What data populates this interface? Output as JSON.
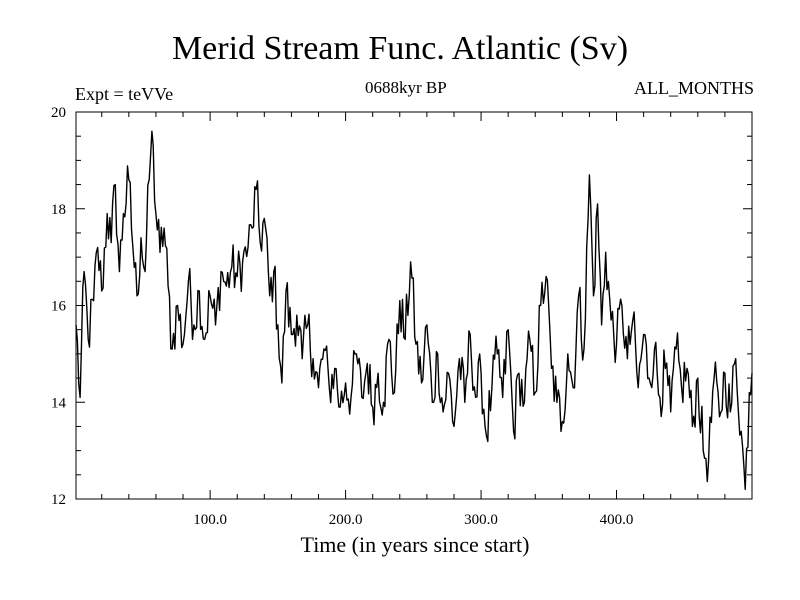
{
  "chart_data": {
    "type": "line",
    "title": "Merid Stream Func. Atlantic (Sv)",
    "subtitle_left": "Expt = teVVe",
    "subtitle_center": "0688kyr BP",
    "subtitle_right": "ALL_MONTHS",
    "xlabel": "Time (in years since start)",
    "ylabel": "",
    "xlim": [
      1,
      500
    ],
    "ylim": [
      12,
      20
    ],
    "x_ticks": [
      100,
      200,
      300,
      400
    ],
    "x_tick_labels": [
      "100.0",
      "200.0",
      "300.0",
      "400.0"
    ],
    "y_ticks": [
      12,
      14,
      16,
      18,
      20
    ],
    "y_tick_labels": [
      "12",
      "14",
      "16",
      "18",
      "20"
    ],
    "grid": false,
    "legend": "none",
    "line_color": "#000000",
    "anchors": [
      [
        1,
        15.6
      ],
      [
        4,
        14.1
      ],
      [
        7,
        16.7
      ],
      [
        10,
        15.3
      ],
      [
        14,
        16.1
      ],
      [
        17,
        17.2
      ],
      [
        20,
        16.3
      ],
      [
        24,
        17.9
      ],
      [
        27,
        17.3
      ],
      [
        30,
        18.5
      ],
      [
        33,
        16.7
      ],
      [
        36,
        17.9
      ],
      [
        40,
        18.6
      ],
      [
        43,
        17.2
      ],
      [
        46,
        16.2
      ],
      [
        49,
        17.4
      ],
      [
        52,
        16.7
      ],
      [
        55,
        18.6
      ],
      [
        57,
        19.6
      ],
      [
        60,
        17.9
      ],
      [
        63,
        17.1
      ],
      [
        66,
        17.6
      ],
      [
        69,
        16.4
      ],
      [
        72,
        15.1
      ],
      [
        76,
        16.0
      ],
      [
        80,
        15.2
      ],
      [
        84,
        16.5
      ],
      [
        88,
        15.6
      ],
      [
        92,
        16.3
      ],
      [
        96,
        15.3
      ],
      [
        100,
        16.2
      ],
      [
        104,
        15.6
      ],
      [
        108,
        16.7
      ],
      [
        112,
        16.4
      ],
      [
        116,
        16.8
      ],
      [
        120,
        16.6
      ],
      [
        124,
        16.9
      ],
      [
        128,
        17.2
      ],
      [
        131,
        17.6
      ],
      [
        134,
        18.4
      ],
      [
        137,
        17.3
      ],
      [
        140,
        17.8
      ],
      [
        144,
        16.2
      ],
      [
        147,
        16.7
      ],
      [
        150,
        15.6
      ],
      [
        153,
        14.4
      ],
      [
        156,
        16.3
      ],
      [
        160,
        15.4
      ],
      [
        164,
        15.8
      ],
      [
        168,
        14.9
      ],
      [
        172,
        15.6
      ],
      [
        176,
        14.9
      ],
      [
        180,
        14.3
      ],
      [
        184,
        15.1
      ],
      [
        188,
        14.3
      ],
      [
        192,
        14.7
      ],
      [
        196,
        13.9
      ],
      [
        200,
        14.4
      ],
      [
        204,
        14.1
      ],
      [
        208,
        15.0
      ],
      [
        212,
        14.1
      ],
      [
        216,
        14.8
      ],
      [
        220,
        13.9
      ],
      [
        224,
        14.6
      ],
      [
        228,
        14.0
      ],
      [
        232,
        15.3
      ],
      [
        236,
        14.2
      ],
      [
        240,
        16.1
      ],
      [
        244,
        15.3
      ],
      [
        248,
        16.9
      ],
      [
        252,
        15.2
      ],
      [
        256,
        14.4
      ],
      [
        260,
        15.6
      ],
      [
        264,
        14.0
      ],
      [
        268,
        15.0
      ],
      [
        272,
        13.8
      ],
      [
        276,
        14.6
      ],
      [
        280,
        13.5
      ],
      [
        284,
        14.9
      ],
      [
        288,
        14.0
      ],
      [
        292,
        15.4
      ],
      [
        296,
        14.1
      ],
      [
        300,
        14.6
      ],
      [
        304,
        13.3
      ],
      [
        308,
        14.3
      ],
      [
        312,
        15.0
      ],
      [
        316,
        14.1
      ],
      [
        320,
        15.5
      ],
      [
        324,
        13.4
      ],
      [
        328,
        14.6
      ],
      [
        332,
        14.0
      ],
      [
        336,
        15.3
      ],
      [
        340,
        14.2
      ],
      [
        344,
        16.0
      ],
      [
        348,
        16.6
      ],
      [
        352,
        14.7
      ],
      [
        356,
        14.0
      ],
      [
        360,
        13.6
      ],
      [
        364,
        15.0
      ],
      [
        368,
        14.3
      ],
      [
        372,
        16.2
      ],
      [
        376,
        15.1
      ],
      [
        380,
        18.7
      ],
      [
        383,
        16.2
      ],
      [
        386,
        18.1
      ],
      [
        389,
        15.6
      ],
      [
        392,
        17.1
      ],
      [
        396,
        15.7
      ],
      [
        400,
        15.2
      ],
      [
        404,
        16.0
      ],
      [
        408,
        14.9
      ],
      [
        412,
        15.7
      ],
      [
        416,
        14.3
      ],
      [
        420,
        15.4
      ],
      [
        424,
        14.5
      ],
      [
        428,
        15.1
      ],
      [
        432,
        14.1
      ],
      [
        436,
        14.7
      ],
      [
        440,
        13.8
      ],
      [
        444,
        15.1
      ],
      [
        448,
        14.3
      ],
      [
        452,
        14.7
      ],
      [
        456,
        13.5
      ],
      [
        460,
        14.5
      ],
      [
        464,
        13.0
      ],
      [
        468,
        12.8
      ],
      [
        472,
        14.5
      ],
      [
        476,
        13.7
      ],
      [
        480,
        14.6
      ],
      [
        484,
        13.8
      ],
      [
        488,
        14.9
      ],
      [
        492,
        13.4
      ],
      [
        495,
        12.2
      ],
      [
        498,
        14.2
      ],
      [
        500,
        14.6
      ]
    ]
  }
}
